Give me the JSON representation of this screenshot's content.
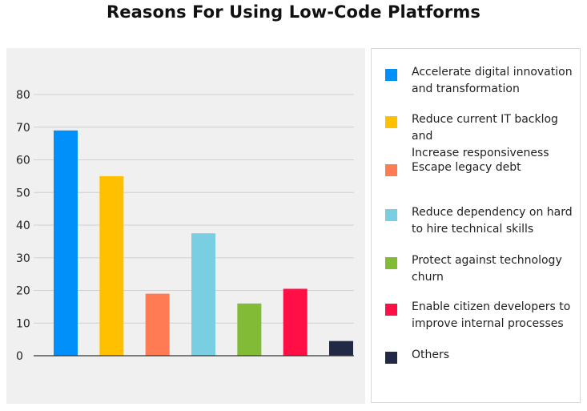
{
  "chart_data": {
    "type": "bar",
    "title": "Reasons For Using Low-Code Platforms",
    "xlabel": "",
    "ylabel": "",
    "ylim": [
      0,
      80
    ],
    "yticks": [
      0,
      10,
      20,
      30,
      40,
      50,
      60,
      70,
      80
    ],
    "grid": true,
    "legend_position": "right",
    "categories": [
      "Accelerate digital innovation and transformation",
      "Reduce current IT backlog and Increase responsiveness",
      "Escape legacy debt",
      "Reduce dependency on hard to hire technical skills",
      "Protect against technology churn",
      "Enable citizen developers to improve internal processes",
      "Others"
    ],
    "values": [
      69,
      55,
      19,
      37.5,
      16,
      20.5,
      4.5
    ],
    "colors": [
      "#0190f9",
      "#ffc000",
      "#ff7b54",
      "#79cfe1",
      "#82bc37",
      "#ff0f45",
      "#212944"
    ],
    "legend": [
      {
        "label_lines": [
          "Accelerate digital innovation",
          "and transformation"
        ],
        "color": "#0190f9"
      },
      {
        "label_lines": [
          "Reduce current IT backlog and",
          "Increase responsiveness"
        ],
        "color": "#ffc000"
      },
      {
        "label_lines": [
          "Escape legacy debt"
        ],
        "color": "#ff7b54"
      },
      {
        "label_lines": [
          "Reduce dependency on hard",
          "to hire technical skills"
        ],
        "color": "#79cfe1"
      },
      {
        "label_lines": [
          "Protect against technology",
          "churn"
        ],
        "color": "#82bc37"
      },
      {
        "label_lines": [
          "Enable citizen developers to",
          "improve internal processes"
        ],
        "color": "#ff0f45"
      },
      {
        "label_lines": [
          "Others"
        ],
        "color": "#212944"
      }
    ]
  }
}
